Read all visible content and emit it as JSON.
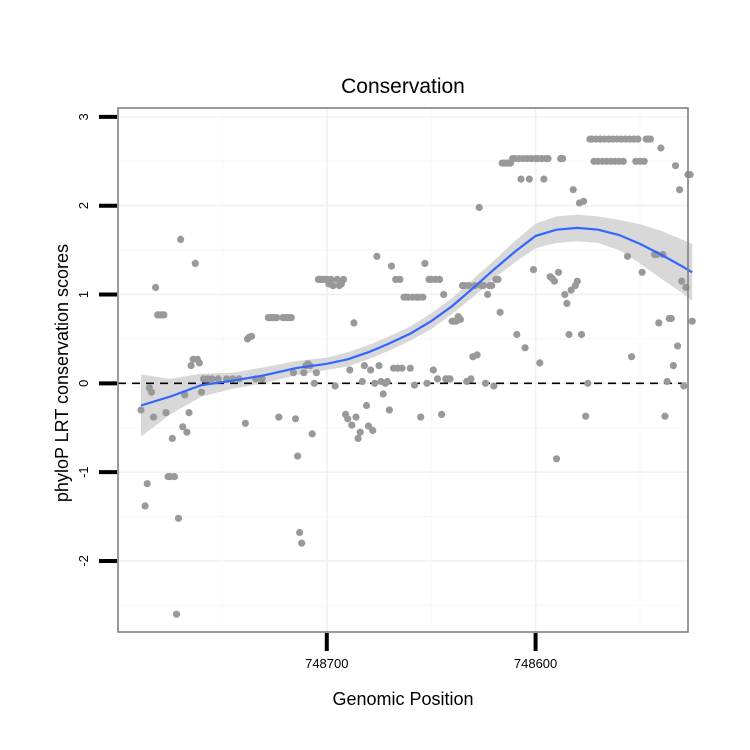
{
  "chart_data": {
    "type": "scatter",
    "title": "Conservation",
    "xlabel": "Genomic Position",
    "ylabel": "phyloP LRT conservation scores",
    "x_reversed": true,
    "xlim": [
      748800,
      748527
    ],
    "ylim": [
      -2.8,
      3.1
    ],
    "x_ticks": [
      748700,
      748600
    ],
    "x_tick_labels": [
      "748700",
      "748600"
    ],
    "y_ticks": [
      -2,
      -1,
      0,
      1,
      2,
      3
    ],
    "y_tick_labels": [
      "-2",
      "-1",
      "0",
      "1",
      "2",
      "3"
    ],
    "grid": true,
    "reference_line": {
      "y": 0,
      "style": "dashed"
    },
    "point_color": "#999999",
    "trend_color": "#3366ff",
    "band_color": "#d4d4d4",
    "points": [
      [
        748789,
        -0.3
      ],
      [
        748787,
        -1.38
      ],
      [
        748786,
        -1.13
      ],
      [
        748785,
        -0.05
      ],
      [
        748784,
        -0.1
      ],
      [
        748783,
        -0.38
      ],
      [
        748782,
        1.08
      ],
      [
        748781,
        0.77
      ],
      [
        748780,
        0.77
      ],
      [
        748779,
        0.77
      ],
      [
        748778,
        0.77
      ],
      [
        748777,
        -0.33
      ],
      [
        748776,
        -1.05
      ],
      [
        748775,
        -1.05
      ],
      [
        748774,
        -0.62
      ],
      [
        748773,
        -1.05
      ],
      [
        748772,
        -2.6
      ],
      [
        748771,
        -1.52
      ],
      [
        748770,
        1.62
      ],
      [
        748769,
        -0.49
      ],
      [
        748768,
        -0.13
      ],
      [
        748767,
        -0.55
      ],
      [
        748766,
        -0.33
      ],
      [
        748765,
        0.2
      ],
      [
        748764,
        0.27
      ],
      [
        748763,
        1.35
      ],
      [
        748762,
        0.27
      ],
      [
        748761,
        0.23
      ],
      [
        748760,
        -0.1
      ],
      [
        748759,
        0.05
      ],
      [
        748757,
        0.05
      ],
      [
        748755,
        0.05
      ],
      [
        748752,
        0.05
      ],
      [
        748748,
        0.05
      ],
      [
        748745,
        0.05
      ],
      [
        748742,
        0.05
      ],
      [
        748739,
        -0.45
      ],
      [
        748738,
        0.5
      ],
      [
        748737,
        0.52
      ],
      [
        748736,
        0.53
      ],
      [
        748734,
        0.05
      ],
      [
        748731,
        0.05
      ],
      [
        748728,
        0.74
      ],
      [
        748727,
        0.74
      ],
      [
        748726,
        0.74
      ],
      [
        748725,
        0.74
      ],
      [
        748724,
        0.74
      ],
      [
        748723,
        -0.38
      ],
      [
        748721,
        0.74
      ],
      [
        748720,
        0.74
      ],
      [
        748719,
        0.74
      ],
      [
        748718,
        0.74
      ],
      [
        748717,
        0.74
      ],
      [
        748716,
        0.12
      ],
      [
        748715,
        -0.4
      ],
      [
        748714,
        -0.82
      ],
      [
        748713,
        -1.68
      ],
      [
        748712,
        -1.8
      ],
      [
        748711,
        0.12
      ],
      [
        748710,
        0.2
      ],
      [
        748709,
        0.22
      ],
      [
        748708,
        0.2
      ],
      [
        748707,
        -0.57
      ],
      [
        748706,
        0.0
      ],
      [
        748705,
        0.12
      ],
      [
        748704,
        1.17
      ],
      [
        748703,
        1.17
      ],
      [
        748702,
        1.17
      ],
      [
        748701,
        1.17
      ],
      [
        748700,
        1.17
      ],
      [
        748699,
        1.12
      ],
      [
        748698,
        1.17
      ],
      [
        748697,
        1.1
      ],
      [
        748696,
        -0.03
      ],
      [
        748695,
        1.17
      ],
      [
        748694,
        1.1
      ],
      [
        748693,
        1.12
      ],
      [
        748692,
        1.17
      ],
      [
        748691,
        -0.35
      ],
      [
        748690,
        -0.4
      ],
      [
        748689,
        0.15
      ],
      [
        748688,
        -0.47
      ],
      [
        748687,
        0.68
      ],
      [
        748686,
        -0.38
      ],
      [
        748685,
        -0.62
      ],
      [
        748684,
        -0.55
      ],
      [
        748683,
        0.02
      ],
      [
        748682,
        0.2
      ],
      [
        748681,
        -0.25
      ],
      [
        748680,
        -0.48
      ],
      [
        748679,
        0.15
      ],
      [
        748678,
        -0.53
      ],
      [
        748677,
        0.0
      ],
      [
        748676,
        1.43
      ],
      [
        748675,
        0.2
      ],
      [
        748674,
        0.02
      ],
      [
        748673,
        -0.12
      ],
      [
        748672,
        0.0
      ],
      [
        748671,
        0.02
      ],
      [
        748670,
        -0.3
      ],
      [
        748669,
        1.32
      ],
      [
        748668,
        0.17
      ],
      [
        748667,
        1.17
      ],
      [
        748666,
        0.17
      ],
      [
        748665,
        1.17
      ],
      [
        748664,
        0.17
      ],
      [
        748663,
        0.97
      ],
      [
        748662,
        0.97
      ],
      [
        748661,
        0.97
      ],
      [
        748660,
        0.17
      ],
      [
        748659,
        0.97
      ],
      [
        748658,
        -0.02
      ],
      [
        748657,
        0.97
      ],
      [
        748656,
        0.97
      ],
      [
        748655,
        -0.38
      ],
      [
        748654,
        0.97
      ],
      [
        748653,
        1.35
      ],
      [
        748652,
        0.0
      ],
      [
        748651,
        1.17
      ],
      [
        748650,
        1.17
      ],
      [
        748649,
        0.15
      ],
      [
        748648,
        1.17
      ],
      [
        748647,
        0.05
      ],
      [
        748646,
        1.17
      ],
      [
        748645,
        -0.35
      ],
      [
        748644,
        1.0
      ],
      [
        748643,
        0.05
      ],
      [
        748642,
        0.05
      ],
      [
        748641,
        0.05
      ],
      [
        748640,
        0.7
      ],
      [
        748639,
        0.7
      ],
      [
        748638,
        0.7
      ],
      [
        748637,
        0.75
      ],
      [
        748636,
        0.72
      ],
      [
        748635,
        1.1
      ],
      [
        748634,
        1.1
      ],
      [
        748633,
        0.02
      ],
      [
        748632,
        1.1
      ],
      [
        748631,
        0.05
      ],
      [
        748630,
        0.3
      ],
      [
        748629,
        1.1
      ],
      [
        748628,
        0.32
      ],
      [
        748627,
        1.98
      ],
      [
        748626,
        1.1
      ],
      [
        748625,
        1.1
      ],
      [
        748624,
        0.0
      ],
      [
        748623,
        1.0
      ],
      [
        748622,
        1.1
      ],
      [
        748621,
        1.1
      ],
      [
        748620,
        -0.03
      ],
      [
        748619,
        1.17
      ],
      [
        748618,
        1.17
      ],
      [
        748617,
        0.8
      ],
      [
        748616,
        2.48
      ],
      [
        748615,
        2.48
      ],
      [
        748614,
        2.48
      ],
      [
        748613,
        2.48
      ],
      [
        748612,
        2.48
      ],
      [
        748611,
        2.53
      ],
      [
        748610,
        2.53
      ],
      [
        748609,
        0.55
      ],
      [
        748608,
        2.53
      ],
      [
        748607,
        2.3
      ],
      [
        748606,
        2.53
      ],
      [
        748605,
        0.4
      ],
      [
        748604,
        2.53
      ],
      [
        748603,
        2.3
      ],
      [
        748602,
        2.53
      ],
      [
        748601,
        1.28
      ],
      [
        748600,
        2.53
      ],
      [
        748599,
        2.53
      ],
      [
        748598,
        0.23
      ],
      [
        748597,
        2.53
      ],
      [
        748596,
        2.3
      ],
      [
        748595,
        2.53
      ],
      [
        748594,
        2.53
      ],
      [
        748593,
        1.2
      ],
      [
        748592,
        1.18
      ],
      [
        748591,
        1.15
      ],
      [
        748590,
        -0.85
      ],
      [
        748589,
        1.25
      ],
      [
        748588,
        2.53
      ],
      [
        748587,
        2.53
      ],
      [
        748586,
        1.0
      ],
      [
        748585,
        0.9
      ],
      [
        748584,
        0.55
      ],
      [
        748583,
        1.05
      ],
      [
        748582,
        2.18
      ],
      [
        748581,
        1.1
      ],
      [
        748580,
        1.15
      ],
      [
        748579,
        2.03
      ],
      [
        748578,
        0.55
      ],
      [
        748577,
        2.05
      ],
      [
        748576,
        -0.37
      ],
      [
        748575,
        0.0
      ],
      [
        748574,
        2.75
      ],
      [
        748573,
        2.75
      ],
      [
        748572,
        2.5
      ],
      [
        748571,
        2.75
      ],
      [
        748570,
        2.5
      ],
      [
        748569,
        2.75
      ],
      [
        748568,
        2.5
      ],
      [
        748567,
        2.75
      ],
      [
        748566,
        2.5
      ],
      [
        748565,
        2.75
      ],
      [
        748564,
        2.5
      ],
      [
        748563,
        2.75
      ],
      [
        748562,
        2.5
      ],
      [
        748561,
        2.75
      ],
      [
        748560,
        2.5
      ],
      [
        748559,
        2.75
      ],
      [
        748558,
        2.5
      ],
      [
        748557,
        2.75
      ],
      [
        748556,
        1.43
      ],
      [
        748555,
        2.75
      ],
      [
        748554,
        0.3
      ],
      [
        748553,
        2.75
      ],
      [
        748552,
        2.5
      ],
      [
        748551,
        2.75
      ],
      [
        748550,
        2.5
      ],
      [
        748549,
        1.25
      ],
      [
        748548,
        2.5
      ],
      [
        748547,
        2.75
      ],
      [
        748546,
        2.75
      ],
      [
        748545,
        2.75
      ],
      [
        748543,
        1.45
      ],
      [
        748542,
        1.45
      ],
      [
        748541,
        0.68
      ],
      [
        748540,
        2.65
      ],
      [
        748539,
        1.45
      ],
      [
        748538,
        -0.37
      ],
      [
        748537,
        0.02
      ],
      [
        748536,
        0.73
      ],
      [
        748535,
        0.73
      ],
      [
        748534,
        0.2
      ],
      [
        748533,
        2.45
      ],
      [
        748532,
        0.42
      ],
      [
        748531,
        2.18
      ],
      [
        748530,
        1.15
      ],
      [
        748529,
        -0.03
      ],
      [
        748528,
        1.08
      ],
      [
        748527,
        2.35
      ],
      [
        748526,
        2.35
      ],
      [
        748525,
        0.7
      ]
    ],
    "trend": {
      "x": [
        748789,
        748775,
        748760,
        748745,
        748730,
        748715,
        748700,
        748690,
        748680,
        748670,
        748660,
        748650,
        748640,
        748630,
        748620,
        748610,
        748600,
        748590,
        748580,
        748570,
        748560,
        748550,
        748540,
        748530,
        748525
      ],
      "y": [
        -0.25,
        -0.15,
        -0.02,
        0.03,
        0.09,
        0.17,
        0.22,
        0.27,
        0.35,
        0.45,
        0.56,
        0.7,
        0.87,
        1.07,
        1.28,
        1.48,
        1.66,
        1.73,
        1.75,
        1.73,
        1.67,
        1.57,
        1.45,
        1.32,
        1.25
      ],
      "lower": [
        -0.6,
        -0.35,
        -0.15,
        -0.06,
        0.0,
        0.09,
        0.15,
        0.19,
        0.27,
        0.37,
        0.48,
        0.61,
        0.78,
        0.97,
        1.18,
        1.36,
        1.52,
        1.58,
        1.6,
        1.58,
        1.5,
        1.35,
        1.18,
        1.02,
        0.93
      ],
      "upper": [
        0.1,
        0.05,
        0.11,
        0.12,
        0.18,
        0.25,
        0.29,
        0.35,
        0.43,
        0.53,
        0.64,
        0.79,
        0.96,
        1.17,
        1.38,
        1.6,
        1.8,
        1.88,
        1.9,
        1.88,
        1.84,
        1.79,
        1.72,
        1.62,
        1.57
      ]
    }
  }
}
